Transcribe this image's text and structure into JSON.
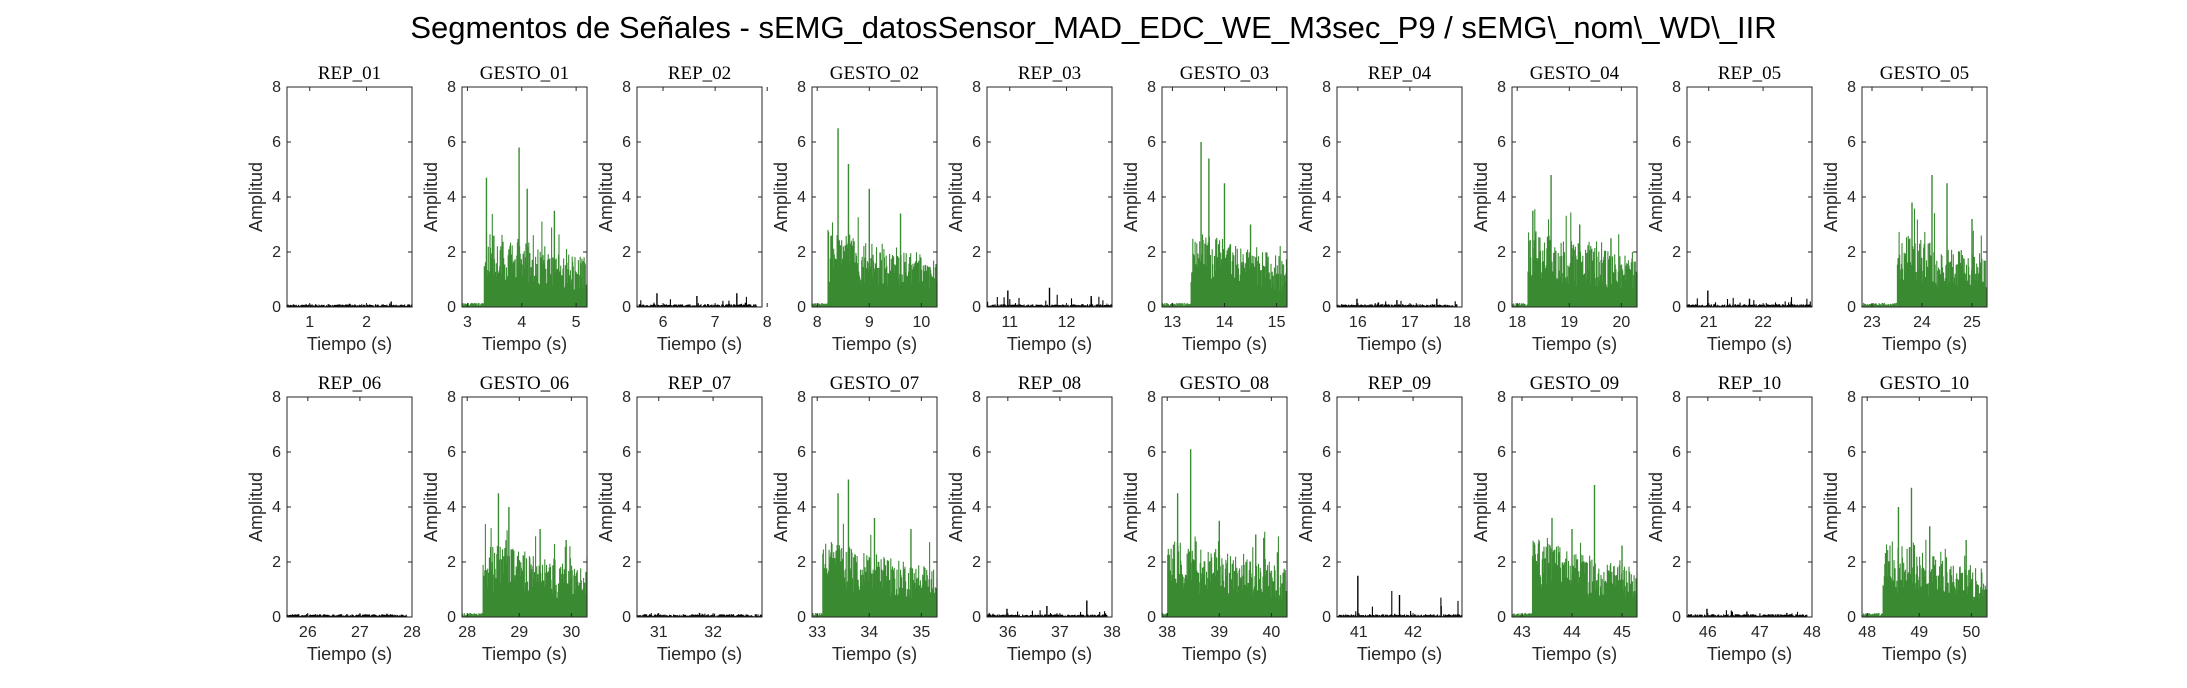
{
  "figure_title": "Segmentos de Señales - sEMG_datosSensor_MAD_EDC_WE_M3sec_P9 / sEMG\\_nom\\_WD\\_IIR",
  "colors": {
    "rep": "#000000",
    "gesto": "#3a8a32",
    "axis": "#262626"
  },
  "chart_data": [
    {
      "type": "area",
      "title": "REP_01",
      "kind": "rep",
      "xlim": [
        0.6,
        2.8
      ],
      "xticks": [
        "1",
        "2"
      ],
      "ylim": [
        0,
        8
      ],
      "yticks": [
        "0",
        "2",
        "4",
        "6",
        "8"
      ],
      "xlabel": "Tiempo (s)",
      "ylabel": "Amplitud",
      "data_start": 0.6,
      "data_end": 2.8,
      "peak_values": [
        0.05,
        0.12,
        0.2
      ],
      "onset": null
    },
    {
      "type": "area",
      "title": "GESTO_01",
      "kind": "gesto",
      "xlim": [
        2.9,
        5.2
      ],
      "xticks": [
        "3",
        "4",
        "5"
      ],
      "ylim": [
        0,
        8
      ],
      "yticks": [
        "0",
        "2",
        "4",
        "6",
        "8"
      ],
      "xlabel": "Tiempo (s)",
      "ylabel": "Amplitud",
      "data_start": 2.9,
      "data_end": 5.2,
      "onset": 3.3,
      "peak_values": [
        4.7,
        5.8,
        4.3,
        3.5
      ],
      "peak_times": [
        3.35,
        3.95,
        4.1,
        4.6
      ]
    },
    {
      "type": "area",
      "title": "REP_02",
      "kind": "rep",
      "xlim": [
        5.5,
        7.9
      ],
      "xticks": [
        "6",
        "7",
        "8"
      ],
      "ylim": [
        0,
        8
      ],
      "yticks": [
        "0",
        "2",
        "4",
        "6",
        "8"
      ],
      "xlabel": "Tiempo (s)",
      "ylabel": "Amplitud",
      "data_start": 5.5,
      "data_end": 7.8,
      "peak_values": [
        0.5,
        0.4,
        0.5
      ],
      "onset": null
    },
    {
      "type": "area",
      "title": "GESTO_02",
      "kind": "gesto",
      "xlim": [
        7.9,
        10.3
      ],
      "xticks": [
        "8",
        "9",
        "10"
      ],
      "ylim": [
        0,
        8
      ],
      "yticks": [
        "0",
        "2",
        "4",
        "6",
        "8"
      ],
      "xlabel": "Tiempo (s)",
      "ylabel": "Amplitud",
      "data_start": 7.9,
      "data_end": 10.3,
      "onset": 8.2,
      "peak_values": [
        6.5,
        5.2,
        4.3,
        3.4
      ],
      "peak_times": [
        8.4,
        8.6,
        9.0,
        9.6
      ]
    },
    {
      "type": "area",
      "title": "REP_03",
      "kind": "rep",
      "xlim": [
        10.6,
        12.8
      ],
      "xticks": [
        "11",
        "12"
      ],
      "ylim": [
        0,
        8
      ],
      "yticks": [
        "0",
        "2",
        "4",
        "6",
        "8"
      ],
      "xlabel": "Tiempo (s)",
      "ylabel": "Amplitud",
      "data_start": 10.6,
      "data_end": 12.8,
      "peak_values": [
        0.6,
        0.7,
        0.4
      ],
      "onset": null
    },
    {
      "type": "area",
      "title": "GESTO_03",
      "kind": "gesto",
      "xlim": [
        12.8,
        15.2
      ],
      "xticks": [
        "13",
        "14",
        "15"
      ],
      "ylim": [
        0,
        8
      ],
      "yticks": [
        "0",
        "2",
        "4",
        "6",
        "8"
      ],
      "xlabel": "Tiempo (s)",
      "ylabel": "Amplitud",
      "data_start": 12.8,
      "data_end": 15.2,
      "onset": 13.35,
      "peak_values": [
        6.0,
        5.4,
        4.5,
        3.0
      ],
      "peak_times": [
        13.55,
        13.7,
        14.0,
        14.5
      ]
    },
    {
      "type": "area",
      "title": "REP_04",
      "kind": "rep",
      "xlim": [
        15.6,
        18.0
      ],
      "xticks": [
        "16",
        "17",
        "18"
      ],
      "ylim": [
        0,
        8
      ],
      "yticks": [
        "0",
        "2",
        "4",
        "6",
        "8"
      ],
      "xlabel": "Tiempo (s)",
      "ylabel": "Amplitud",
      "data_start": 15.6,
      "data_end": 17.9,
      "peak_values": [
        0.3,
        0.25,
        0.3
      ],
      "onset": null
    },
    {
      "type": "area",
      "title": "GESTO_04",
      "kind": "gesto",
      "xlim": [
        17.9,
        20.3
      ],
      "xticks": [
        "18",
        "19",
        "20"
      ],
      "ylim": [
        0,
        8
      ],
      "yticks": [
        "0",
        "2",
        "4",
        "6",
        "8"
      ],
      "xlabel": "Tiempo (s)",
      "ylabel": "Amplitud",
      "data_start": 17.9,
      "data_end": 20.3,
      "onset": 18.2,
      "peak_values": [
        4.8,
        3.5,
        3.0,
        2.5
      ],
      "peak_times": [
        18.65,
        18.3,
        19.2,
        19.8
      ]
    },
    {
      "type": "area",
      "title": "REP_05",
      "kind": "rep",
      "xlim": [
        20.6,
        22.9
      ],
      "xticks": [
        "21",
        "22"
      ],
      "ylim": [
        0,
        8
      ],
      "yticks": [
        "0",
        "2",
        "4",
        "6",
        "8"
      ],
      "xlabel": "Tiempo (s)",
      "ylabel": "Amplitud",
      "data_start": 20.6,
      "data_end": 22.9,
      "peak_values": [
        0.6,
        0.3,
        0.2
      ],
      "onset": null
    },
    {
      "type": "area",
      "title": "GESTO_05",
      "kind": "gesto",
      "xlim": [
        22.8,
        25.3
      ],
      "xticks": [
        "23",
        "24",
        "25"
      ],
      "ylim": [
        0,
        8
      ],
      "yticks": [
        "0",
        "2",
        "4",
        "6",
        "8"
      ],
      "xlabel": "Tiempo (s)",
      "ylabel": "Amplitud",
      "data_start": 22.8,
      "data_end": 25.3,
      "onset": 23.5,
      "peak_values": [
        4.8,
        4.5,
        3.8,
        3.2
      ],
      "peak_times": [
        24.2,
        24.5,
        23.8,
        25.0
      ]
    },
    {
      "type": "area",
      "title": "REP_06",
      "kind": "rep",
      "xlim": [
        25.6,
        28.0
      ],
      "xticks": [
        "26",
        "27",
        "28"
      ],
      "ylim": [
        0,
        8
      ],
      "yticks": [
        "0",
        "2",
        "4",
        "6",
        "8"
      ],
      "xlabel": "Tiempo (s)",
      "ylabel": "Amplitud",
      "data_start": 25.6,
      "data_end": 27.9,
      "peak_values": [
        0.1,
        0.1,
        0.12
      ],
      "onset": null
    },
    {
      "type": "area",
      "title": "GESTO_06",
      "kind": "gesto",
      "xlim": [
        27.9,
        30.3
      ],
      "xticks": [
        "28",
        "29",
        "30"
      ],
      "ylim": [
        0,
        8
      ],
      "yticks": [
        "0",
        "2",
        "4",
        "6",
        "8"
      ],
      "xlabel": "Tiempo (s)",
      "ylabel": "Amplitud",
      "data_start": 27.9,
      "data_end": 30.3,
      "onset": 28.3,
      "peak_values": [
        4.5,
        4.0,
        3.2,
        2.8
      ],
      "peak_times": [
        28.6,
        28.8,
        29.4,
        29.9
      ]
    },
    {
      "type": "area",
      "title": "REP_07",
      "kind": "rep",
      "xlim": [
        30.6,
        32.9
      ],
      "xticks": [
        "31",
        "32"
      ],
      "ylim": [
        0,
        8
      ],
      "yticks": [
        "0",
        "2",
        "4",
        "6",
        "8"
      ],
      "xlabel": "Tiempo (s)",
      "ylabel": "Amplitud",
      "data_start": 30.6,
      "data_end": 32.9,
      "peak_values": [
        0.1,
        0.15,
        0.1
      ],
      "onset": null
    },
    {
      "type": "area",
      "title": "GESTO_07",
      "kind": "gesto",
      "xlim": [
        32.9,
        35.3
      ],
      "xticks": [
        "33",
        "34",
        "35"
      ],
      "ylim": [
        0,
        8
      ],
      "yticks": [
        "0",
        "2",
        "4",
        "6",
        "8"
      ],
      "xlabel": "Tiempo (s)",
      "ylabel": "Amplitud",
      "data_start": 32.9,
      "data_end": 35.3,
      "onset": 33.1,
      "peak_values": [
        4.5,
        5.0,
        3.6,
        3.2
      ],
      "peak_times": [
        33.4,
        33.6,
        34.1,
        34.8
      ]
    },
    {
      "type": "area",
      "title": "REP_08",
      "kind": "rep",
      "xlim": [
        35.6,
        38.0
      ],
      "xticks": [
        "36",
        "37",
        "38"
      ],
      "ylim": [
        0,
        8
      ],
      "yticks": [
        "0",
        "2",
        "4",
        "6",
        "8"
      ],
      "xlabel": "Tiempo (s)",
      "ylabel": "Amplitud",
      "data_start": 35.6,
      "data_end": 37.9,
      "peak_values": [
        0.3,
        0.4,
        0.6
      ],
      "onset": null
    },
    {
      "type": "area",
      "title": "GESTO_08",
      "kind": "gesto",
      "xlim": [
        37.9,
        40.3
      ],
      "xticks": [
        "38",
        "39",
        "40"
      ],
      "ylim": [
        0,
        8
      ],
      "yticks": [
        "0",
        "2",
        "4",
        "6",
        "8"
      ],
      "xlabel": "Tiempo (s)",
      "ylabel": "Amplitud",
      "data_start": 37.9,
      "data_end": 40.3,
      "onset": 38.0,
      "peak_values": [
        6.1,
        4.5,
        3.5,
        3.0
      ],
      "peak_times": [
        38.45,
        38.2,
        39.0,
        39.7
      ]
    },
    {
      "type": "area",
      "title": "REP_09",
      "kind": "rep",
      "xlim": [
        40.6,
        42.9
      ],
      "xticks": [
        "41",
        "42"
      ],
      "ylim": [
        0,
        8
      ],
      "yticks": [
        "0",
        "2",
        "4",
        "6",
        "8"
      ],
      "xlabel": "Tiempo (s)",
      "ylabel": "Amplitud",
      "data_start": 40.6,
      "data_end": 42.9,
      "peak_values": [
        1.5,
        0.8,
        0.4
      ],
      "onset": null
    },
    {
      "type": "area",
      "title": "GESTO_09",
      "kind": "gesto",
      "xlim": [
        42.8,
        45.3
      ],
      "xticks": [
        "43",
        "44",
        "45"
      ],
      "ylim": [
        0,
        8
      ],
      "yticks": [
        "0",
        "2",
        "4",
        "6",
        "8"
      ],
      "xlabel": "Tiempo (s)",
      "ylabel": "Amplitud",
      "data_start": 42.8,
      "data_end": 45.3,
      "onset": 43.2,
      "peak_values": [
        4.8,
        3.6,
        3.2,
        2.6
      ],
      "peak_times": [
        44.45,
        43.6,
        44.0,
        45.0
      ]
    },
    {
      "type": "area",
      "title": "REP_10",
      "kind": "rep",
      "xlim": [
        45.6,
        48.0
      ],
      "xticks": [
        "46",
        "47",
        "48"
      ],
      "ylim": [
        0,
        8
      ],
      "yticks": [
        "0",
        "2",
        "4",
        "6",
        "8"
      ],
      "xlabel": "Tiempo (s)",
      "ylabel": "Amplitud",
      "data_start": 45.6,
      "data_end": 47.9,
      "peak_values": [
        0.3,
        0.2,
        0.15
      ],
      "onset": null
    },
    {
      "type": "area",
      "title": "GESTO_10",
      "kind": "gesto",
      "xlim": [
        47.9,
        50.3
      ],
      "xticks": [
        "48",
        "49",
        "50"
      ],
      "ylim": [
        0,
        8
      ],
      "yticks": [
        "0",
        "2",
        "4",
        "6",
        "8"
      ],
      "xlabel": "Tiempo (s)",
      "ylabel": "Amplitud",
      "data_start": 47.9,
      "data_end": 50.3,
      "onset": 48.3,
      "peak_values": [
        4.7,
        4.0,
        3.3,
        2.8
      ],
      "peak_times": [
        48.85,
        48.6,
        49.2,
        49.9
      ]
    }
  ]
}
